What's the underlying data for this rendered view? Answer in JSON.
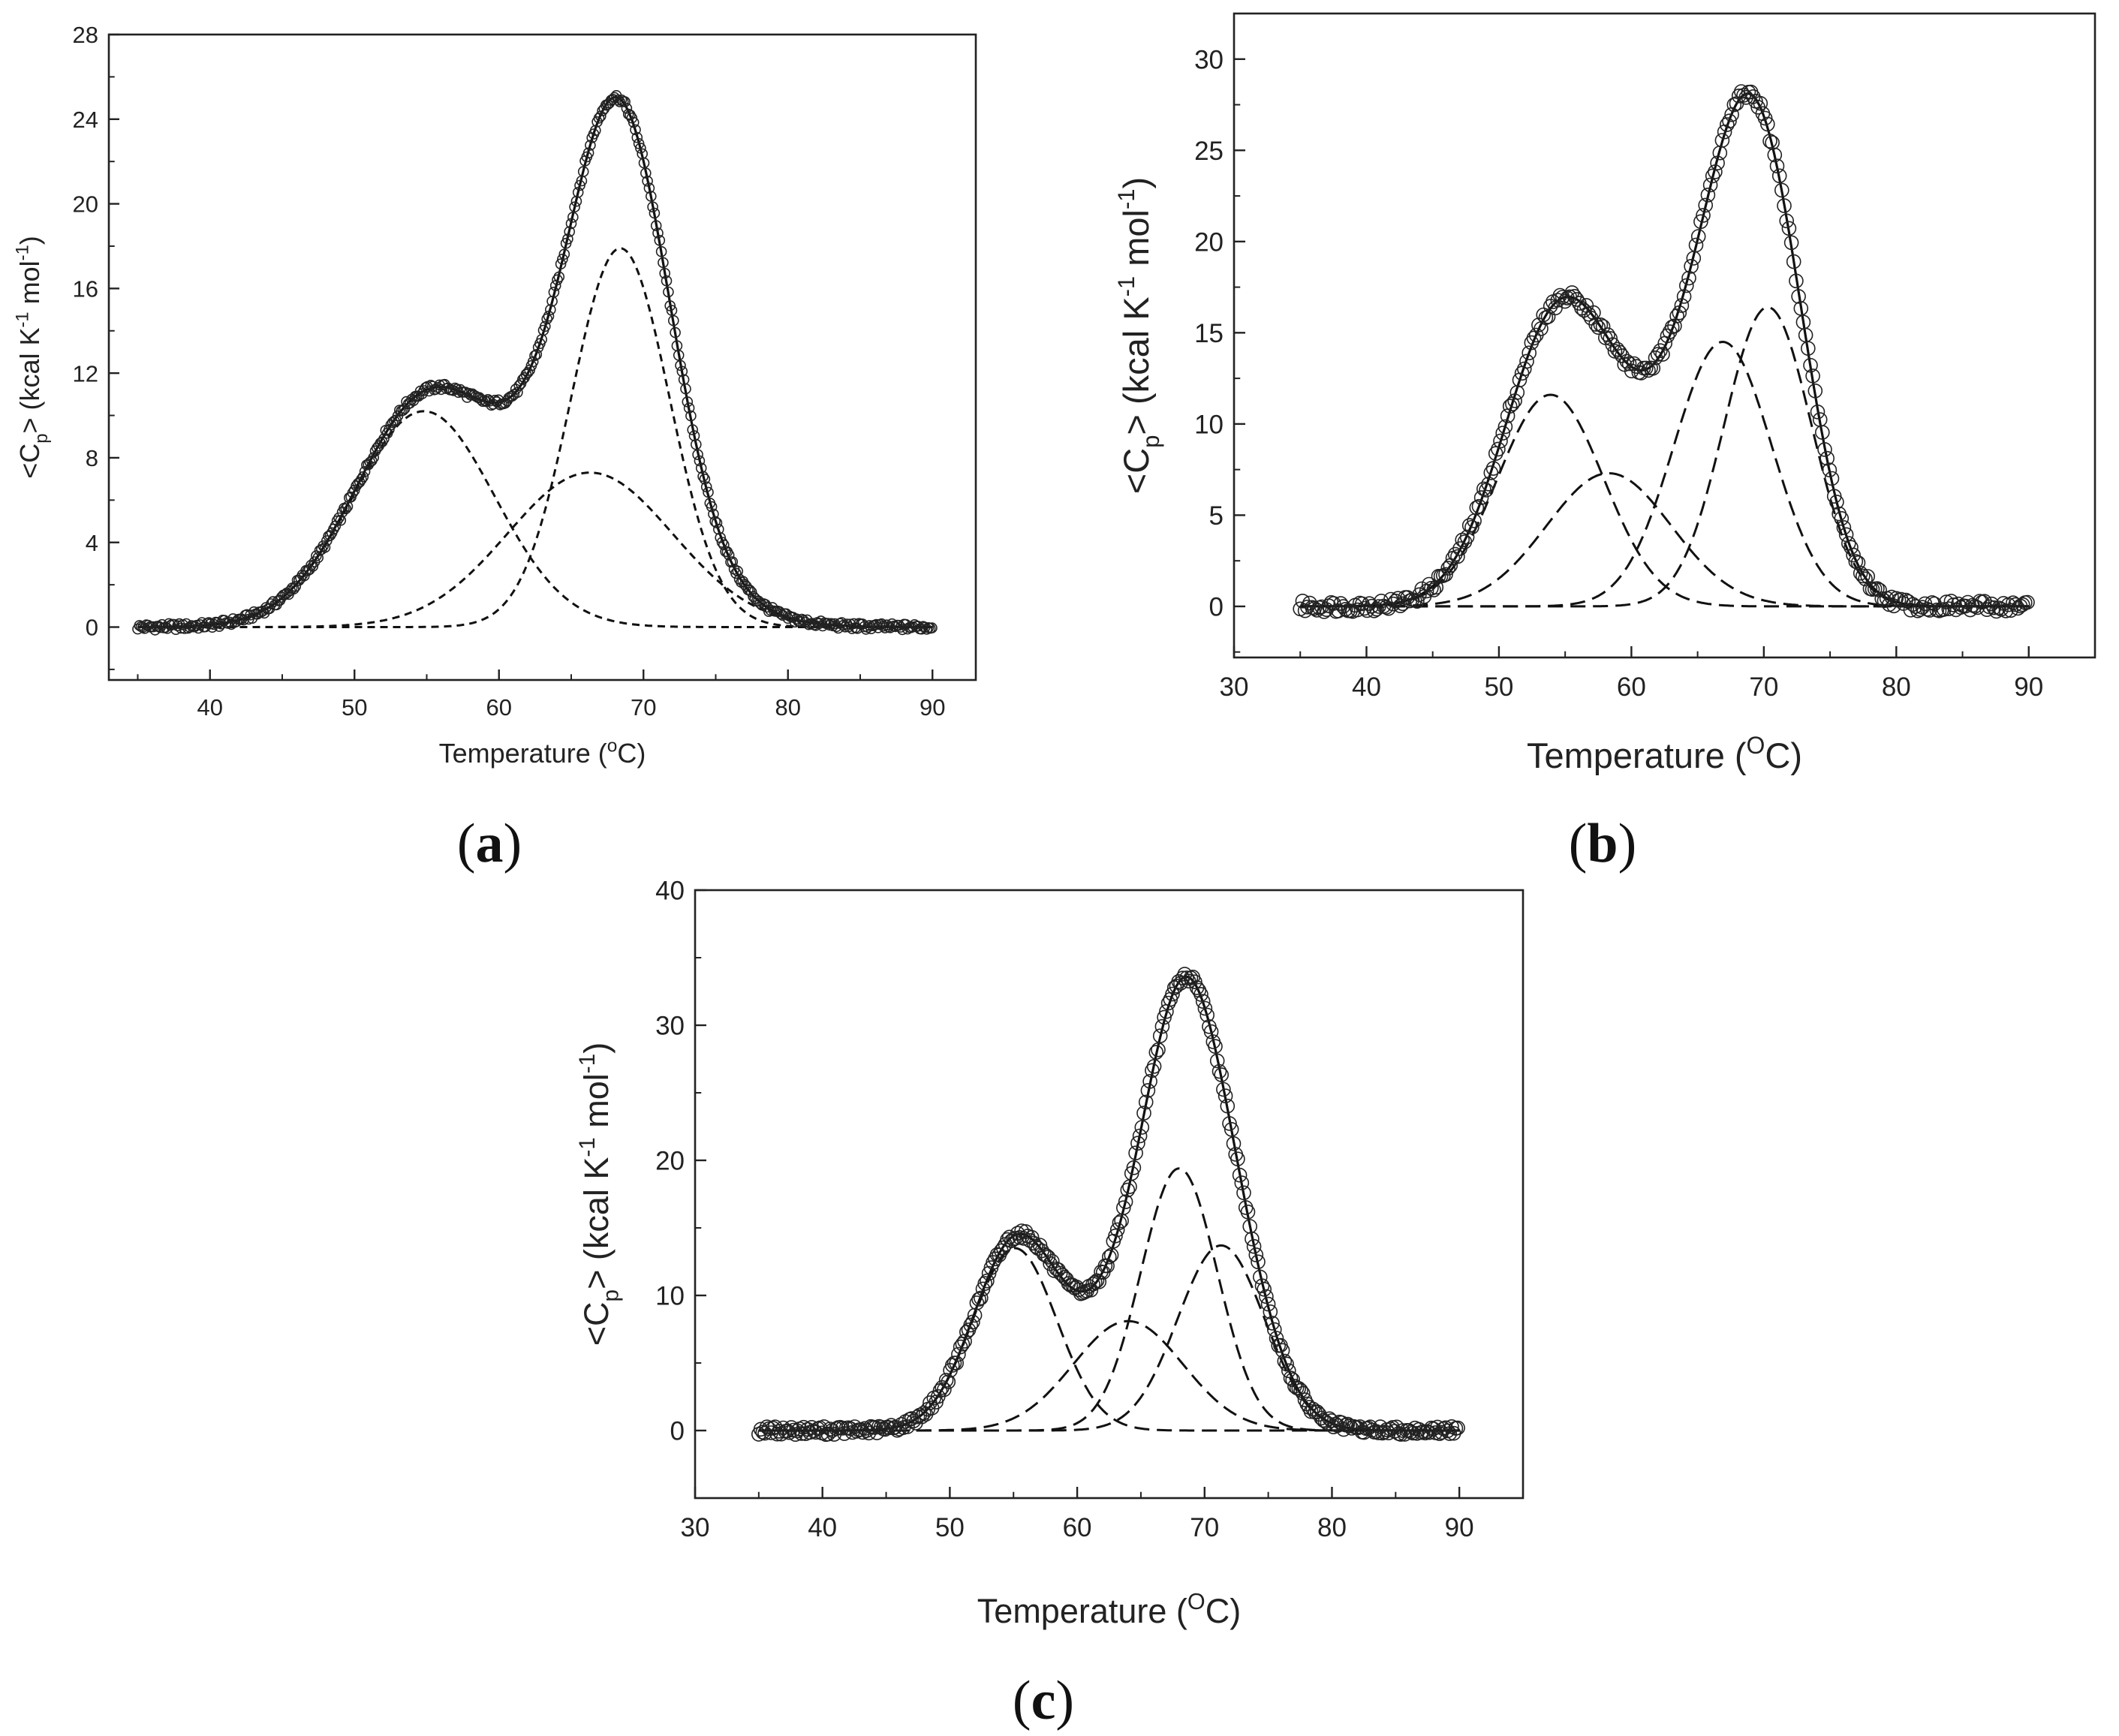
{
  "chart_data": [
    {
      "panel": "a",
      "panel_label": "(a)",
      "type": "line",
      "xlabel_main": "Temperature (",
      "xlabel_sup": "o",
      "xlabel_end": "C)",
      "ylabel_prefix": "<C",
      "ylabel_sub": "p",
      "ylabel_mid": "> (kcal K",
      "ylabel_sup1": "-1",
      "ylabel_mol": " mol",
      "ylabel_sup2": "-1",
      "ylabel_end": ")",
      "xlim": [
        33,
        93
      ],
      "ylim": [
        -2.5,
        28
      ],
      "xticks": [
        40,
        50,
        60,
        70,
        80,
        90
      ],
      "yticks": [
        0,
        4,
        8,
        12,
        16,
        20,
        24,
        28
      ],
      "xtick_labels": [
        "40",
        "50",
        "60",
        "70",
        "80",
        "90"
      ],
      "ytick_labels": [
        "0",
        "4",
        "8",
        "12",
        "16",
        "20",
        "24",
        "28"
      ],
      "x_range": [
        35,
        90
      ],
      "components": [
        {
          "name": "component-1",
          "center": 54.8,
          "height": 10.2,
          "width": 4.9
        },
        {
          "name": "component-2",
          "center": 66.3,
          "height": 7.3,
          "width": 5.7
        },
        {
          "name": "component-3",
          "center": 68.4,
          "height": 17.9,
          "width": 3.4
        }
      ],
      "marker_step": 0.12,
      "marker_noise": 0.15,
      "marker_size": "small",
      "dash_style": "short"
    },
    {
      "panel": "b",
      "panel_label": "(b)",
      "type": "line",
      "xlabel_main": "Temperature (",
      "xlabel_sup": "O",
      "xlabel_end": "C)",
      "ylabel_prefix": "<C",
      "ylabel_sub": "p",
      "ylabel_mid": "> (kcal K",
      "ylabel_sup1": "-1",
      "ylabel_mol": " mol",
      "ylabel_sup2": "-1",
      "ylabel_end": ")",
      "xlim": [
        30,
        95
      ],
      "ylim": [
        -2.8,
        32.5
      ],
      "xticks": [
        30,
        40,
        50,
        60,
        70,
        80,
        90
      ],
      "yticks": [
        0,
        5,
        10,
        15,
        20,
        25,
        30
      ],
      "xtick_labels": [
        "30",
        "40",
        "50",
        "60",
        "70",
        "80",
        "90"
      ],
      "ytick_labels": [
        "0",
        "5",
        "10",
        "15",
        "20",
        "25",
        "30"
      ],
      "x_range": [
        35,
        90
      ],
      "components": [
        {
          "name": "component-1",
          "center": 53.9,
          "height": 11.6,
          "width": 4.0
        },
        {
          "name": "component-2",
          "center": 58.3,
          "height": 7.3,
          "width": 4.7
        },
        {
          "name": "component-3",
          "center": 66.9,
          "height": 14.5,
          "width": 3.7
        },
        {
          "name": "component-4",
          "center": 70.3,
          "height": 16.4,
          "width": 3.3
        }
      ],
      "marker_step": 0.18,
      "marker_noise": 0.3,
      "marker_size": "large",
      "dash_style": "long"
    },
    {
      "panel": "c",
      "panel_label": "(c)",
      "type": "line",
      "xlabel_main": "Temperature (",
      "xlabel_sup": "O",
      "xlabel_end": "C)",
      "ylabel_prefix": "<C",
      "ylabel_sub": "p",
      "ylabel_mid": "> (kcal K",
      "ylabel_sup1": "-1",
      "ylabel_mol": " mol",
      "ylabel_sup2": "-1",
      "ylabel_end": ")",
      "xlim": [
        30,
        95
      ],
      "ylim": [
        -5,
        40
      ],
      "xticks": [
        30,
        40,
        50,
        60,
        70,
        80,
        90
      ],
      "yticks": [
        0,
        10,
        20,
        30,
        40
      ],
      "xtick_labels": [
        "30",
        "40",
        "50",
        "60",
        "70",
        "80",
        "90"
      ],
      "ytick_labels": [
        "0",
        "10",
        "20",
        "30",
        "40"
      ],
      "x_range": [
        35,
        90
      ],
      "components": [
        {
          "name": "component-1",
          "center": 55.1,
          "height": 13.5,
          "width": 3.3
        },
        {
          "name": "component-2",
          "center": 64.0,
          "height": 8.1,
          "width": 4.3
        },
        {
          "name": "component-3",
          "center": 68.0,
          "height": 19.4,
          "width": 3.0
        },
        {
          "name": "component-4",
          "center": 71.3,
          "height": 13.7,
          "width": 3.4
        }
      ],
      "marker_step": 0.16,
      "marker_noise": 0.3,
      "marker_size": "large",
      "dash_style": "long"
    }
  ]
}
